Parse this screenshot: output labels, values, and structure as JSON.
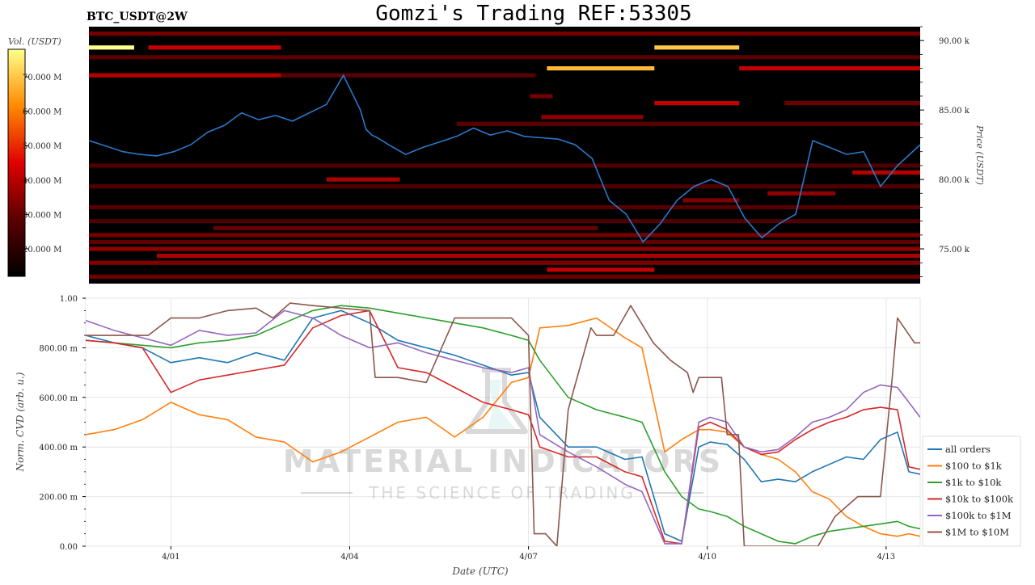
{
  "header": {
    "ticker": "BTC_USDT@2W",
    "title": "Gomzi's Trading REF:53305"
  },
  "watermark": {
    "brand": "MATERIAL INDICATORS",
    "tagline": "THE SCIENCE OF TRADING"
  },
  "colors": {
    "price_line": "#2a78c8",
    "heatmap_bg": "#000000",
    "orange_accent": "#ff8c00"
  },
  "chart_data": [
    {
      "type": "heatmap",
      "name": "order-book-heatmap",
      "x_range_days": [
        0,
        14.7
      ],
      "x_tick_labels": [],
      "price_axis": {
        "label": "Price (USDT)",
        "ylim": [
          72500,
          91000
        ],
        "tick_values": [
          75000,
          80000,
          85000,
          90000
        ],
        "tick_labels": [
          "75.00 k",
          "80.00 k",
          "85.00 k",
          "90.00 k"
        ]
      },
      "colorbar": {
        "label": "Vol. (USDT)",
        "range": [
          12000000,
          78000000
        ],
        "tick_values": [
          20000000,
          30000000,
          40000000,
          50000000,
          60000000,
          70000000
        ],
        "tick_labels": [
          "20.000 M",
          "30.000 M",
          "40.000 M",
          "50.000 M",
          "60.000 M",
          "70.000 M"
        ]
      },
      "walls": [
        {
          "price": 90500,
          "start": 0.0,
          "end": 14.7,
          "level": 0.3
        },
        {
          "price": 89500,
          "start": 0.0,
          "end": 0.8,
          "level": 1.0
        },
        {
          "price": 89500,
          "start": 1.05,
          "end": 3.4,
          "level": 0.45
        },
        {
          "price": 89500,
          "start": 10.0,
          "end": 11.5,
          "level": 0.88
        },
        {
          "price": 88800,
          "start": 0.0,
          "end": 14.7,
          "level": 0.25
        },
        {
          "price": 88000,
          "start": 8.1,
          "end": 10.0,
          "level": 0.85
        },
        {
          "price": 88000,
          "start": 11.5,
          "end": 14.7,
          "level": 0.45
        },
        {
          "price": 87500,
          "start": 0.0,
          "end": 3.4,
          "level": 0.42
        },
        {
          "price": 87500,
          "start": 3.4,
          "end": 7.9,
          "level": 0.25
        },
        {
          "price": 86000,
          "start": 7.8,
          "end": 8.2,
          "level": 0.3
        },
        {
          "price": 85500,
          "start": 10.0,
          "end": 11.5,
          "level": 0.45
        },
        {
          "price": 85500,
          "start": 12.3,
          "end": 14.7,
          "level": 0.28
        },
        {
          "price": 84500,
          "start": 8.0,
          "end": 9.8,
          "level": 0.35
        },
        {
          "price": 84000,
          "start": 6.5,
          "end": 14.7,
          "level": 0.25
        },
        {
          "price": 81000,
          "start": 0.0,
          "end": 14.7,
          "level": 0.22
        },
        {
          "price": 80500,
          "start": 13.5,
          "end": 14.7,
          "level": 0.42
        },
        {
          "price": 80000,
          "start": 4.2,
          "end": 5.5,
          "level": 0.4
        },
        {
          "price": 79500,
          "start": 0.0,
          "end": 14.7,
          "level": 0.22
        },
        {
          "price": 79000,
          "start": 12.0,
          "end": 13.2,
          "level": 0.35
        },
        {
          "price": 78500,
          "start": 10.5,
          "end": 11.5,
          "level": 0.32
        },
        {
          "price": 78000,
          "start": 0.0,
          "end": 14.7,
          "level": 0.24
        },
        {
          "price": 77000,
          "start": 0.0,
          "end": 14.7,
          "level": 0.22
        },
        {
          "price": 76500,
          "start": 2.2,
          "end": 9.0,
          "level": 0.28
        },
        {
          "price": 76000,
          "start": 0.0,
          "end": 14.7,
          "level": 0.3
        },
        {
          "price": 75500,
          "start": 0.0,
          "end": 14.7,
          "level": 0.26
        },
        {
          "price": 75000,
          "start": 0.0,
          "end": 14.7,
          "level": 0.35
        },
        {
          "price": 74500,
          "start": 1.2,
          "end": 14.7,
          "level": 0.4
        },
        {
          "price": 74000,
          "start": 0.0,
          "end": 14.7,
          "level": 0.32
        },
        {
          "price": 73500,
          "start": 8.1,
          "end": 10.0,
          "level": 0.45
        },
        {
          "price": 73000,
          "start": 0.0,
          "end": 14.7,
          "level": 0.28
        }
      ],
      "price_series": {
        "t": [
          0.0,
          0.3,
          0.6,
          0.9,
          1.2,
          1.5,
          1.8,
          2.1,
          2.4,
          2.7,
          3.0,
          3.3,
          3.6,
          3.9,
          4.2,
          4.5,
          4.8,
          4.9,
          5.0,
          5.1,
          5.3,
          5.6,
          5.9,
          6.2,
          6.5,
          6.8,
          7.1,
          7.4,
          7.7,
          8.0,
          8.3,
          8.6,
          8.9,
          9.2,
          9.5,
          9.8,
          10.1,
          10.4,
          10.7,
          11.0,
          11.3,
          11.6,
          11.9,
          12.2,
          12.5,
          12.8,
          13.1,
          13.4,
          13.7,
          14.0,
          14.3,
          14.7
        ],
        "price": [
          82800,
          82400,
          82000,
          81800,
          81700,
          82000,
          82500,
          83400,
          83900,
          84800,
          84300,
          84600,
          84200,
          84800,
          85400,
          87500,
          85000,
          83600,
          83200,
          83000,
          82500,
          81800,
          82300,
          82700,
          83100,
          83700,
          83200,
          83500,
          83100,
          83000,
          82900,
          82500,
          81500,
          78500,
          77500,
          75500,
          76800,
          78500,
          79500,
          80000,
          79500,
          77200,
          75800,
          76800,
          77500,
          82800,
          82300,
          81800,
          82000,
          79500,
          81000,
          82500
        ]
      }
    },
    {
      "type": "line",
      "name": "cvd-chart",
      "xlabel": "Date (UTC)",
      "ylabel": "Norm. CVD (arb. u.)",
      "ylim": [
        0,
        1
      ],
      "x_range_days": [
        0,
        14.7
      ],
      "x_ticks": [
        {
          "t": 1.5,
          "label": "4/01"
        },
        {
          "t": 4.65,
          "label": "4/04"
        },
        {
          "t": 7.8,
          "label": "4/07"
        },
        {
          "t": 10.95,
          "label": "4/10"
        },
        {
          "t": 14.1,
          "label": "4/13"
        }
      ],
      "y_ticks": [
        {
          "v": 0.0,
          "label": "0.00"
        },
        {
          "v": 0.2,
          "label": "200.00 m"
        },
        {
          "v": 0.4,
          "label": "400.00 m"
        },
        {
          "v": 0.6,
          "label": "600.00 m"
        },
        {
          "v": 0.8,
          "label": "800.00 m"
        },
        {
          "v": 1.0,
          "label": "1.00"
        }
      ],
      "legend_position": "right",
      "series": [
        {
          "name": "all orders",
          "color": "#1f77b4",
          "t": [
            0.0,
            0.5,
            1.0,
            1.5,
            2.0,
            2.5,
            3.0,
            3.5,
            4.0,
            4.5,
            5.0,
            5.5,
            6.0,
            6.5,
            7.0,
            7.5,
            7.8,
            8.0,
            8.5,
            9.0,
            9.5,
            9.8,
            10.2,
            10.5,
            10.8,
            11.0,
            11.3,
            11.6,
            11.9,
            12.2,
            12.5,
            12.8,
            13.1,
            13.4,
            13.7,
            14.0,
            14.3,
            14.5,
            14.7
          ],
          "v": [
            0.85,
            0.82,
            0.8,
            0.74,
            0.76,
            0.74,
            0.78,
            0.75,
            0.92,
            0.95,
            0.9,
            0.83,
            0.8,
            0.77,
            0.73,
            0.69,
            0.7,
            0.52,
            0.4,
            0.4,
            0.35,
            0.36,
            0.05,
            0.02,
            0.4,
            0.42,
            0.41,
            0.35,
            0.26,
            0.27,
            0.26,
            0.3,
            0.33,
            0.36,
            0.35,
            0.43,
            0.46,
            0.3,
            0.29
          ]
        },
        {
          "name": "$100 to $1k",
          "color": "#ff7f0e",
          "t": [
            0.0,
            0.5,
            1.0,
            1.5,
            2.0,
            2.5,
            3.0,
            3.5,
            4.0,
            4.5,
            5.0,
            5.5,
            6.0,
            6.5,
            7.0,
            7.5,
            7.8,
            8.0,
            8.5,
            9.0,
            9.5,
            9.8,
            10.2,
            10.5,
            10.8,
            11.0,
            11.3,
            11.6,
            11.9,
            12.2,
            12.5,
            12.8,
            13.1,
            13.4,
            13.7,
            14.0,
            14.3,
            14.5,
            14.7
          ],
          "v": [
            0.45,
            0.47,
            0.51,
            0.58,
            0.53,
            0.51,
            0.44,
            0.42,
            0.34,
            0.38,
            0.44,
            0.5,
            0.52,
            0.44,
            0.52,
            0.66,
            0.68,
            0.88,
            0.89,
            0.92,
            0.84,
            0.8,
            0.38,
            0.43,
            0.47,
            0.47,
            0.46,
            0.4,
            0.37,
            0.35,
            0.3,
            0.22,
            0.19,
            0.12,
            0.08,
            0.05,
            0.04,
            0.05,
            0.04
          ]
        },
        {
          "name": "$1k to $10k",
          "color": "#2ca02c",
          "t": [
            0.0,
            0.5,
            1.0,
            1.5,
            2.0,
            2.5,
            3.0,
            3.5,
            4.0,
            4.5,
            5.0,
            5.5,
            6.0,
            6.5,
            7.0,
            7.5,
            7.8,
            8.0,
            8.5,
            9.0,
            9.5,
            9.8,
            10.2,
            10.5,
            10.8,
            11.0,
            11.3,
            11.6,
            11.9,
            12.2,
            12.5,
            12.8,
            13.1,
            13.4,
            13.7,
            14.0,
            14.3,
            14.5,
            14.7
          ],
          "v": [
            0.83,
            0.82,
            0.81,
            0.8,
            0.82,
            0.83,
            0.85,
            0.9,
            0.95,
            0.97,
            0.96,
            0.94,
            0.92,
            0.9,
            0.88,
            0.85,
            0.83,
            0.75,
            0.6,
            0.55,
            0.52,
            0.5,
            0.3,
            0.2,
            0.15,
            0.14,
            0.12,
            0.08,
            0.05,
            0.02,
            0.01,
            0.04,
            0.06,
            0.07,
            0.08,
            0.09,
            0.1,
            0.08,
            0.07
          ]
        },
        {
          "name": "$10k to $100k",
          "color": "#d62728",
          "t": [
            0.0,
            0.5,
            1.0,
            1.5,
            2.0,
            2.5,
            3.0,
            3.5,
            4.0,
            4.5,
            5.0,
            5.5,
            6.0,
            6.5,
            7.0,
            7.5,
            7.8,
            8.0,
            8.5,
            9.0,
            9.5,
            9.8,
            10.2,
            10.5,
            10.8,
            11.0,
            11.3,
            11.6,
            11.9,
            12.2,
            12.5,
            12.8,
            13.1,
            13.4,
            13.7,
            14.0,
            14.3,
            14.5,
            14.7
          ],
          "v": [
            0.83,
            0.82,
            0.8,
            0.62,
            0.67,
            0.69,
            0.71,
            0.73,
            0.88,
            0.93,
            0.95,
            0.72,
            0.7,
            0.64,
            0.58,
            0.55,
            0.53,
            0.4,
            0.36,
            0.36,
            0.3,
            0.28,
            0.02,
            0.01,
            0.48,
            0.5,
            0.47,
            0.4,
            0.37,
            0.38,
            0.43,
            0.47,
            0.5,
            0.52,
            0.55,
            0.56,
            0.55,
            0.32,
            0.31
          ]
        },
        {
          "name": "$100k to $1M",
          "color": "#9467bd",
          "t": [
            0.0,
            0.5,
            1.0,
            1.5,
            2.0,
            2.5,
            3.0,
            3.5,
            4.0,
            4.5,
            5.0,
            5.5,
            6.0,
            6.5,
            7.0,
            7.5,
            7.8,
            8.0,
            8.5,
            9.0,
            9.5,
            9.8,
            10.2,
            10.5,
            10.8,
            11.0,
            11.3,
            11.6,
            11.9,
            12.2,
            12.5,
            12.8,
            13.1,
            13.4,
            13.7,
            14.0,
            14.3,
            14.5,
            14.7
          ],
          "v": [
            0.91,
            0.87,
            0.84,
            0.81,
            0.87,
            0.85,
            0.86,
            0.95,
            0.92,
            0.85,
            0.8,
            0.82,
            0.78,
            0.75,
            0.72,
            0.7,
            0.72,
            0.45,
            0.38,
            0.32,
            0.25,
            0.22,
            0.01,
            0.01,
            0.5,
            0.52,
            0.5,
            0.4,
            0.38,
            0.39,
            0.44,
            0.5,
            0.52,
            0.55,
            0.62,
            0.65,
            0.64,
            0.58,
            0.52
          ]
        },
        {
          "name": "$1M to $10M",
          "color": "#8c564b",
          "t": [
            0.0,
            0.5,
            1.0,
            1.1,
            1.5,
            2.0,
            2.5,
            3.0,
            3.3,
            3.6,
            4.0,
            4.5,
            5.0,
            5.1,
            5.5,
            6.0,
            6.5,
            7.0,
            7.5,
            7.8,
            7.9,
            8.1,
            8.3,
            8.5,
            8.9,
            9.0,
            9.3,
            9.6,
            10.0,
            10.3,
            10.6,
            10.7,
            10.8,
            11.2,
            11.3,
            11.5,
            11.6,
            12.0,
            12.5,
            12.9,
            13.2,
            13.6,
            14.0,
            14.2,
            14.3,
            14.6,
            14.7
          ],
          "v": [
            0.85,
            0.85,
            0.85,
            0.85,
            0.92,
            0.92,
            0.95,
            0.96,
            0.92,
            0.98,
            0.97,
            0.96,
            0.95,
            0.68,
            0.68,
            0.66,
            0.92,
            0.92,
            0.92,
            0.85,
            0.05,
            0.05,
            0.0,
            0.55,
            0.88,
            0.85,
            0.85,
            0.97,
            0.82,
            0.75,
            0.7,
            0.62,
            0.68,
            0.68,
            0.45,
            0.45,
            0.0,
            0.0,
            0.0,
            0.0,
            0.12,
            0.2,
            0.2,
            0.66,
            0.92,
            0.82,
            0.82
          ]
        }
      ]
    }
  ]
}
